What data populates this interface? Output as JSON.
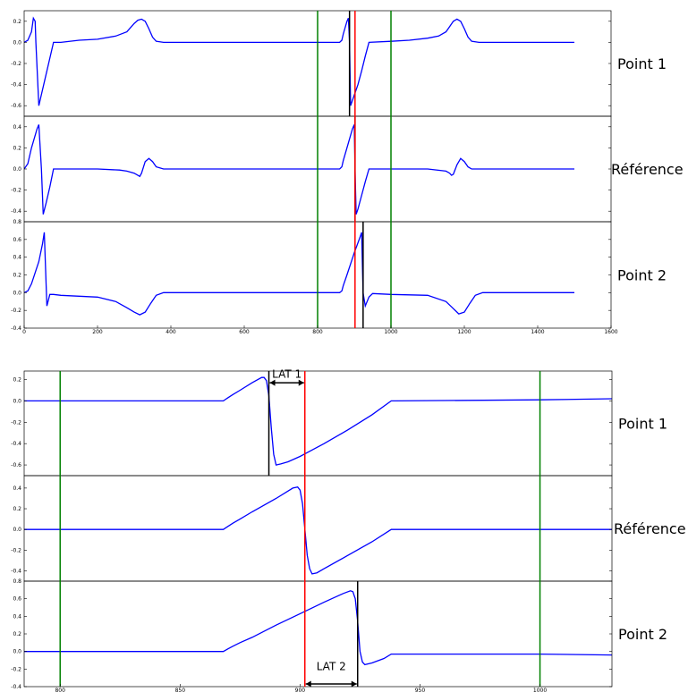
{
  "colors": {
    "signal": "#0000ff",
    "window": "#008000",
    "reference_marker": "#ff0000",
    "activation_marker": "#000000",
    "axes": "#000000"
  },
  "chart_data": [
    {
      "type": "line",
      "name": "overview",
      "xlim": [
        0,
        1600
      ],
      "xticks": [
        0,
        200,
        400,
        600,
        800,
        1000,
        1200,
        1400,
        1600
      ],
      "window": [
        800,
        1000
      ],
      "reference_time": 902,
      "panels": [
        {
          "label": "Point 1",
          "ylim": [
            -0.7,
            0.3
          ],
          "yticks": [
            -0.6,
            -0.4,
            -0.2,
            0.0,
            0.2
          ],
          "marker": 887,
          "x": [
            0,
            10,
            20,
            25,
            30,
            32,
            40,
            50,
            60,
            70,
            80,
            100,
            150,
            200,
            250,
            280,
            300,
            310,
            320,
            330,
            340,
            350,
            360,
            380,
            400,
            500,
            600,
            700,
            800,
            850,
            860,
            866,
            870,
            880,
            884,
            887,
            890,
            895,
            900,
            910,
            920,
            930,
            940,
            1000,
            1050,
            1100,
            1130,
            1150,
            1160,
            1170,
            1180,
            1190,
            1200,
            1210,
            1220,
            1240,
            1300,
            1400,
            1500
          ],
          "y": [
            0.0,
            0.02,
            0.1,
            0.23,
            0.2,
            0.0,
            -0.6,
            -0.45,
            -0.3,
            -0.15,
            0.0,
            0.0,
            0.02,
            0.03,
            0.06,
            0.1,
            0.18,
            0.21,
            0.22,
            0.2,
            0.13,
            0.05,
            0.01,
            0.0,
            0.0,
            0.0,
            0.0,
            0.0,
            0.0,
            0.0,
            0.0,
            0.02,
            0.08,
            0.2,
            0.23,
            0.0,
            -0.6,
            -0.55,
            -0.5,
            -0.4,
            -0.27,
            -0.13,
            0.0,
            0.01,
            0.02,
            0.04,
            0.06,
            0.1,
            0.15,
            0.2,
            0.22,
            0.2,
            0.13,
            0.05,
            0.01,
            0.0,
            0.0,
            0.0,
            0.0
          ]
        },
        {
          "label": "Référence",
          "ylim": [
            -0.5,
            0.5
          ],
          "yticks": [
            -0.4,
            -0.2,
            0.0,
            0.2,
            0.4
          ],
          "marker": 902,
          "x": [
            0,
            10,
            20,
            35,
            40,
            47,
            52,
            60,
            70,
            80,
            100,
            200,
            260,
            280,
            300,
            310,
            315,
            320,
            330,
            340,
            350,
            360,
            380,
            400,
            500,
            600,
            700,
            800,
            860,
            866,
            870,
            880,
            895,
            900,
            902,
            905,
            910,
            920,
            930,
            940,
            1000,
            1100,
            1150,
            1160,
            1165,
            1170,
            1180,
            1190,
            1200,
            1210,
            1220,
            1240,
            1300,
            1400,
            1500
          ],
          "y": [
            0.0,
            0.05,
            0.2,
            0.38,
            0.42,
            0.0,
            -0.43,
            -0.32,
            -0.17,
            0.0,
            0.0,
            0.0,
            -0.01,
            -0.02,
            -0.04,
            -0.06,
            -0.07,
            -0.04,
            0.07,
            0.1,
            0.07,
            0.02,
            0.0,
            0.0,
            0.0,
            0.0,
            0.0,
            0.0,
            0.0,
            0.02,
            0.08,
            0.2,
            0.38,
            0.42,
            0.0,
            -0.43,
            -0.38,
            -0.25,
            -0.12,
            0.0,
            0.0,
            0.0,
            -0.02,
            -0.04,
            -0.06,
            -0.05,
            0.04,
            0.1,
            0.07,
            0.02,
            0.0,
            0.0,
            0.0,
            0.0,
            0.0
          ]
        },
        {
          "label": "Point 2",
          "ylim": [
            -0.4,
            0.8
          ],
          "yticks": [
            -0.4,
            -0.2,
            0.0,
            0.2,
            0.4,
            0.6,
            0.8
          ],
          "marker": 924,
          "x": [
            0,
            10,
            20,
            40,
            50,
            55,
            62,
            70,
            80,
            100,
            200,
            250,
            280,
            300,
            315,
            330,
            345,
            360,
            380,
            400,
            500,
            600,
            700,
            800,
            860,
            866,
            870,
            880,
            900,
            915,
            920,
            924,
            930,
            940,
            950,
            1000,
            1100,
            1150,
            1170,
            1185,
            1200,
            1215,
            1230,
            1250,
            1300,
            1400,
            1500
          ],
          "y": [
            0.0,
            0.02,
            0.1,
            0.35,
            0.55,
            0.68,
            -0.15,
            -0.02,
            -0.02,
            -0.03,
            -0.05,
            -0.1,
            -0.17,
            -0.22,
            -0.25,
            -0.22,
            -0.12,
            -0.03,
            0.0,
            0.0,
            0.0,
            0.0,
            0.0,
            0.0,
            0.0,
            0.02,
            0.08,
            0.2,
            0.45,
            0.62,
            0.68,
            0.0,
            -0.15,
            -0.05,
            -0.01,
            -0.02,
            -0.03,
            -0.1,
            -0.18,
            -0.24,
            -0.22,
            -0.12,
            -0.03,
            0.0,
            0.0,
            0.0,
            0.0
          ]
        }
      ]
    },
    {
      "type": "line",
      "name": "zoom",
      "xlim": [
        785,
        1030
      ],
      "xticks": [
        800,
        850,
        900,
        950,
        1000
      ],
      "window": [
        800,
        1000
      ],
      "reference_time": 902,
      "panels": [
        {
          "label": "Point 1",
          "ylim": [
            -0.7,
            0.28
          ],
          "yticks": [
            -0.6,
            -0.4,
            -0.2,
            0.0,
            0.2
          ],
          "marker": 887,
          "x": [
            785,
            800,
            850,
            868,
            870,
            872,
            875,
            880,
            884,
            885,
            886,
            887,
            888,
            889,
            890,
            892,
            895,
            900,
            910,
            920,
            930,
            938,
            940,
            1000,
            1030
          ],
          "y": [
            0.0,
            0.0,
            0.0,
            0.0,
            0.03,
            0.06,
            0.1,
            0.17,
            0.22,
            0.22,
            0.19,
            0.05,
            -0.25,
            -0.5,
            -0.6,
            -0.59,
            -0.57,
            -0.52,
            -0.4,
            -0.27,
            -0.13,
            0.0,
            0.0,
            0.01,
            0.02
          ]
        },
        {
          "label": "Référence",
          "ylim": [
            -0.5,
            0.52
          ],
          "yticks": [
            -0.4,
            -0.2,
            0.0,
            0.2,
            0.4
          ],
          "marker": 902,
          "x": [
            785,
            800,
            850,
            868,
            870,
            872,
            875,
            880,
            890,
            897,
            899,
            900,
            901,
            902,
            903,
            904,
            905,
            907,
            910,
            920,
            930,
            938,
            1000,
            1030
          ],
          "y": [
            0.0,
            0.0,
            0.0,
            0.0,
            0.03,
            0.06,
            0.1,
            0.17,
            0.3,
            0.4,
            0.41,
            0.38,
            0.25,
            0.0,
            -0.25,
            -0.38,
            -0.43,
            -0.42,
            -0.38,
            -0.25,
            -0.12,
            0.0,
            0.0,
            0.0
          ]
        },
        {
          "label": "Point 2",
          "ylim": [
            -0.4,
            0.8
          ],
          "yticks": [
            -0.4,
            -0.2,
            0.0,
            0.2,
            0.4,
            0.6,
            0.8
          ],
          "marker": 924,
          "x": [
            785,
            800,
            850,
            868,
            870,
            872,
            875,
            880,
            890,
            900,
            910,
            918,
            921,
            922,
            923,
            924,
            925,
            926,
            927,
            930,
            935,
            938,
            1000,
            1030
          ],
          "y": [
            0.0,
            0.0,
            0.0,
            0.0,
            0.03,
            0.06,
            0.1,
            0.16,
            0.3,
            0.43,
            0.56,
            0.66,
            0.69,
            0.68,
            0.6,
            0.35,
            0.0,
            -0.12,
            -0.15,
            -0.13,
            -0.08,
            -0.03,
            -0.03,
            -0.04
          ]
        }
      ],
      "annotations": [
        {
          "text": "LAT 1",
          "from": 887,
          "to": 902,
          "panel": 0,
          "y": 0.17,
          "text_y": 0.25
        },
        {
          "text": "LAT 2",
          "from": 902,
          "to": 924,
          "panel": 2,
          "y": -0.4,
          "text_y": -0.17
        }
      ]
    }
  ]
}
